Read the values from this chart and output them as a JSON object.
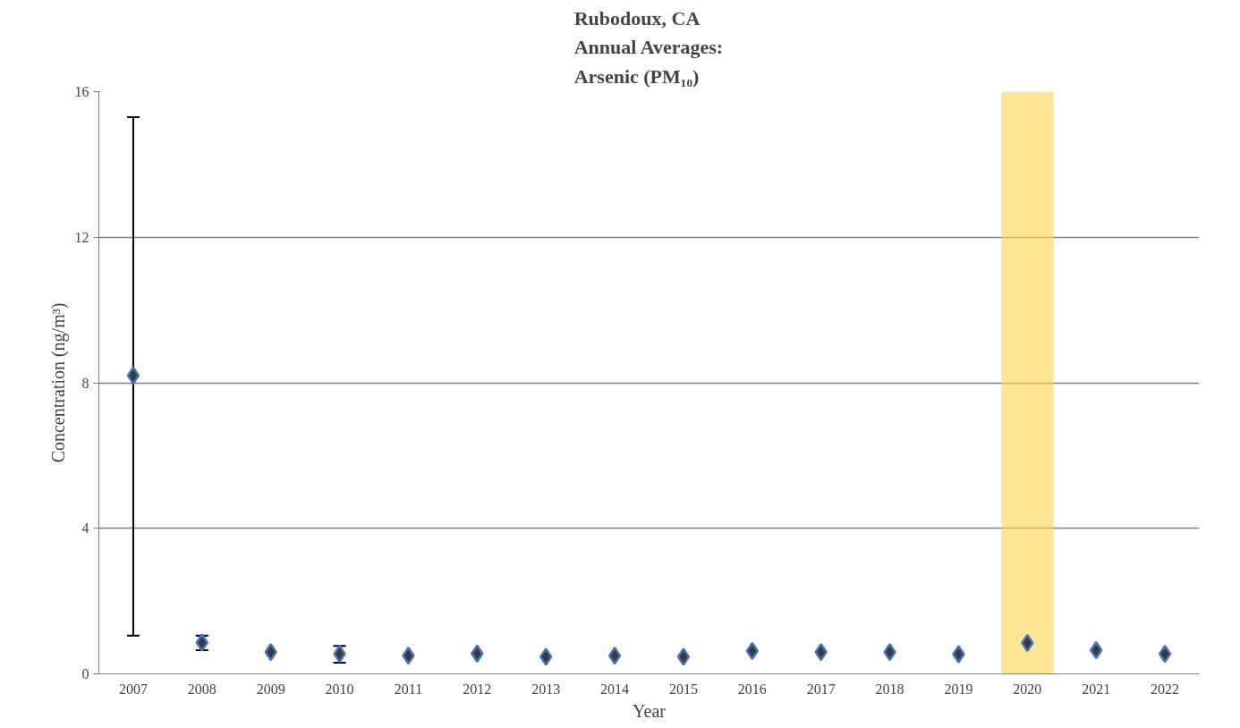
{
  "chart_data": {
    "type": "scatter",
    "title": "Rubodoux, CA\nAnnual Averages:\nArsenic (PM₁₀)",
    "xlabel": "Year",
    "ylabel": "Concentration (ng/m³)",
    "categories": [
      "2007",
      "2008",
      "2009",
      "2010",
      "2011",
      "2012",
      "2013",
      "2014",
      "2015",
      "2016",
      "2017",
      "2018",
      "2019",
      "2020",
      "2021",
      "2022"
    ],
    "series": [
      {
        "color": "#3a3a3a",
        "values": [
          8.2,
          0.86,
          0.6,
          0.55,
          0.5,
          0.56,
          0.47,
          0.5,
          0.47,
          0.63,
          0.6,
          0.6,
          0.54,
          0.85,
          0.65,
          0.55
        ],
        "errors": [
          [
            1.05,
            15.3
          ],
          [
            0.65,
            1.05
          ],
          null,
          [
            0.31,
            0.77
          ],
          null,
          null,
          null,
          null,
          null,
          null,
          null,
          null,
          null,
          null,
          null,
          null
        ]
      }
    ],
    "ylim": [
      0,
      16
    ],
    "yticks": [
      0,
      4,
      8,
      12,
      16
    ],
    "grid": "y",
    "marker": "diamond",
    "bands": [
      {
        "axis": "x",
        "from": "2020",
        "to": "2020",
        "color": "#ffd54f"
      }
    ]
  }
}
